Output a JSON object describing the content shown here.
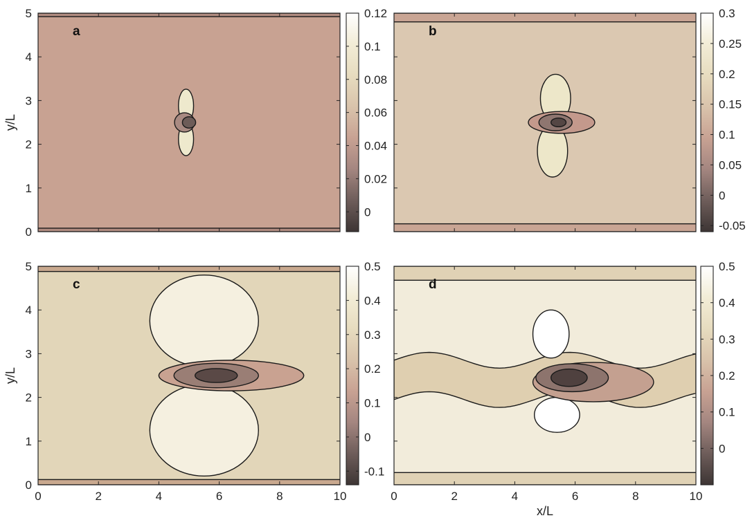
{
  "chart_data": [
    {
      "type": "heatmap",
      "panel_label": "a",
      "xlabel": "",
      "ylabel": "y/L",
      "xlim": [
        0,
        10
      ],
      "ylim": [
        0,
        5
      ],
      "x_ticks": [
        "0",
        "2",
        "4",
        "6",
        "8",
        "10"
      ],
      "x_tick_labels_shown": false,
      "y_ticks": [
        "0",
        "1",
        "2",
        "3",
        "4",
        "5"
      ],
      "colorbar": {
        "min": -0.012,
        "max": 0.12,
        "ticks": [
          "0",
          "0.02",
          "0.04",
          "0.06",
          "0.08",
          "0.1",
          "0.12"
        ]
      },
      "colors": {
        "background": "#c8a292"
      },
      "features": [
        {
          "kind": "boundary-band",
          "y_range": [
            0,
            0.08
          ],
          "fill": "#b08b80"
        },
        {
          "kind": "boundary-band",
          "y_range": [
            4.92,
            5
          ],
          "fill": "#b08b80"
        },
        {
          "kind": "lobe",
          "center": [
            4.9,
            2.88
          ],
          "radii": [
            0.25,
            0.38
          ],
          "fill": "#eee9cd"
        },
        {
          "kind": "lobe",
          "center": [
            4.9,
            2.12
          ],
          "radii": [
            0.25,
            0.38
          ],
          "fill": "#eee9cd"
        },
        {
          "kind": "core",
          "center": [
            4.85,
            2.5
          ],
          "radii": [
            0.33,
            0.22
          ],
          "fill": "#a98a82"
        },
        {
          "kind": "core",
          "center": [
            5.0,
            2.5
          ],
          "radii": [
            0.22,
            0.13
          ],
          "fill": "#6d5c58"
        }
      ]
    },
    {
      "type": "heatmap",
      "panel_label": "b",
      "xlabel": "",
      "ylabel": "",
      "xlim": [
        0,
        10
      ],
      "ylim": [
        0,
        5
      ],
      "x_ticks": [
        "0",
        "2",
        "4",
        "6",
        "8",
        "10"
      ],
      "x_tick_labels_shown": false,
      "y_ticks": [
        "0",
        "1",
        "2",
        "3",
        "4",
        "5"
      ],
      "y_tick_labels_shown": false,
      "colorbar": {
        "min": -0.06,
        "max": 0.3,
        "ticks": [
          "-0.05",
          "0",
          "0.05",
          "0.1",
          "0.15",
          "0.2",
          "0.25",
          "0.3"
        ]
      },
      "colors": {
        "background": "#dbc8b1"
      },
      "features": [
        {
          "kind": "boundary-band",
          "y_range": [
            0,
            0.18
          ],
          "fill": "#c9a594"
        },
        {
          "kind": "boundary-band",
          "y_range": [
            4.8,
            5
          ],
          "fill": "#c9a594"
        },
        {
          "kind": "lobe",
          "center": [
            5.35,
            3.05
          ],
          "radii": [
            0.5,
            0.55
          ],
          "fill": "#ede7c9"
        },
        {
          "kind": "lobe",
          "center": [
            5.25,
            1.85
          ],
          "radii": [
            0.5,
            0.6
          ],
          "fill": "#ede7c9"
        },
        {
          "kind": "core",
          "center": [
            5.55,
            2.5
          ],
          "radii": [
            1.1,
            0.25
          ],
          "fill": "#c4998c"
        },
        {
          "kind": "core",
          "center": [
            5.35,
            2.5
          ],
          "radii": [
            0.55,
            0.19
          ],
          "fill": "#8f7670"
        },
        {
          "kind": "core",
          "center": [
            5.45,
            2.5
          ],
          "radii": [
            0.25,
            0.1
          ],
          "fill": "#544644"
        }
      ]
    },
    {
      "type": "heatmap",
      "panel_label": "c",
      "xlabel": "",
      "ylabel": "y/L",
      "xlim": [
        0,
        10
      ],
      "ylim": [
        0,
        5
      ],
      "x_ticks": [
        "0",
        "2",
        "4",
        "6",
        "8",
        "10"
      ],
      "y_ticks": [
        "0",
        "1",
        "2",
        "3",
        "4",
        "5"
      ],
      "colorbar": {
        "min": -0.14,
        "max": 0.5,
        "ticks": [
          "-0.1",
          "0",
          "0.1",
          "0.2",
          "0.3",
          "0.4",
          "0.5"
        ]
      },
      "colors": {
        "background": "#e2d6b9"
      },
      "features": [
        {
          "kind": "boundary-band",
          "y_range": [
            0,
            0.12
          ],
          "fill": "#c9a98f"
        },
        {
          "kind": "boundary-band",
          "y_range": [
            4.88,
            5
          ],
          "fill": "#c9a98f"
        },
        {
          "kind": "lobe",
          "center": [
            5.5,
            3.75
          ],
          "radii": [
            1.8,
            1.05
          ],
          "fill": "#f5f0e0"
        },
        {
          "kind": "lobe",
          "center": [
            5.5,
            1.25
          ],
          "radii": [
            1.8,
            1.05
          ],
          "fill": "#f5f0e0"
        },
        {
          "kind": "core",
          "center": [
            6.4,
            2.5
          ],
          "radii": [
            2.4,
            0.35
          ],
          "fill": "#c9a291"
        },
        {
          "kind": "core",
          "center": [
            5.9,
            2.5
          ],
          "radii": [
            1.4,
            0.28
          ],
          "fill": "#9a7e75"
        },
        {
          "kind": "core",
          "center": [
            5.9,
            2.5
          ],
          "radii": [
            0.7,
            0.16
          ],
          "fill": "#5a4946"
        }
      ]
    },
    {
      "type": "heatmap",
      "panel_label": "d",
      "xlabel": "x/L",
      "ylabel": "",
      "xlim": [
        0,
        10
      ],
      "ylim": [
        0,
        5
      ],
      "x_ticks": [
        "0",
        "2",
        "4",
        "6",
        "8",
        "10"
      ],
      "y_ticks": [
        "0",
        "1",
        "2",
        "3",
        "4",
        "5"
      ],
      "y_tick_labels_shown": false,
      "colorbar": {
        "min": -0.1,
        "max": 0.5,
        "ticks": [
          "0",
          "0.1",
          "0.2",
          "0.3",
          "0.4",
          "0.5"
        ]
      },
      "colors": {
        "background": "#f2ecdb"
      },
      "features": [
        {
          "kind": "boundary-band",
          "y_range": [
            0,
            0.28
          ],
          "fill": "#e0d2b5"
        },
        {
          "kind": "boundary-band",
          "y_range": [
            4.68,
            5
          ],
          "fill": "#e0d2b5"
        },
        {
          "kind": "wake-band",
          "center_y": 2.4,
          "half_width": 0.45,
          "fill": "#dfcfb0"
        },
        {
          "kind": "lobe",
          "center": [
            5.2,
            3.45
          ],
          "radii": [
            0.6,
            0.55
          ],
          "fill": "#ffffff"
        },
        {
          "kind": "lobe",
          "center": [
            5.4,
            1.6
          ],
          "radii": [
            0.75,
            0.4
          ],
          "fill": "#ffffff"
        },
        {
          "kind": "core",
          "center": [
            6.6,
            2.35
          ],
          "radii": [
            2.0,
            0.45
          ],
          "fill": "#c4a090"
        },
        {
          "kind": "core",
          "center": [
            5.9,
            2.45
          ],
          "radii": [
            1.2,
            0.32
          ],
          "fill": "#8d746d"
        },
        {
          "kind": "core",
          "center": [
            5.8,
            2.45
          ],
          "radii": [
            0.6,
            0.2
          ],
          "fill": "#4f413f"
        }
      ]
    }
  ]
}
